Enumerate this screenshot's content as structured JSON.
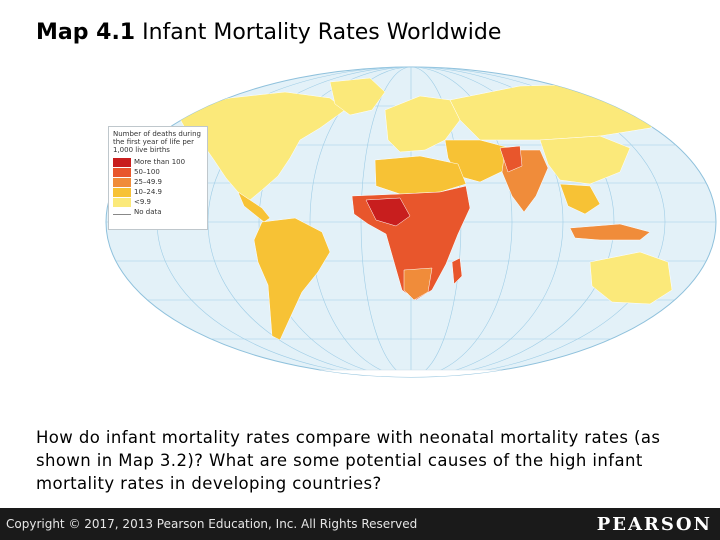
{
  "title": {
    "prefix": "Map 4.1",
    "text": "Infant Mortality Rates Worldwide"
  },
  "legend": {
    "title": "Number of deaths during the first year of life per 1,000 live births",
    "items": [
      {
        "label": "More than 100",
        "color": "#c81e1e"
      },
      {
        "label": "50–100",
        "color": "#e8562c"
      },
      {
        "label": "25–49.9",
        "color": "#f08c3a"
      },
      {
        "label": "10–24.9",
        "color": "#f7c235"
      },
      {
        "label": "<9.9",
        "color": "#fbe97a"
      },
      {
        "label": "No data",
        "color": "#888888"
      }
    ]
  },
  "question": "How do infant mortality rates compare with neonatal mortality rates (as shown in Map 3.2)? What are some potential causes of the high infant mortality rates in developing countries?",
  "footer": {
    "copyright": "Copyright © 2017, 2013 Pearson Education, Inc. All Rights Reserved",
    "logo": "PEARSON"
  },
  "colors": {
    "ocean": "#e3f1f8",
    "grid": "#9fcde6",
    "footer_bg": "#1a1a1a"
  }
}
